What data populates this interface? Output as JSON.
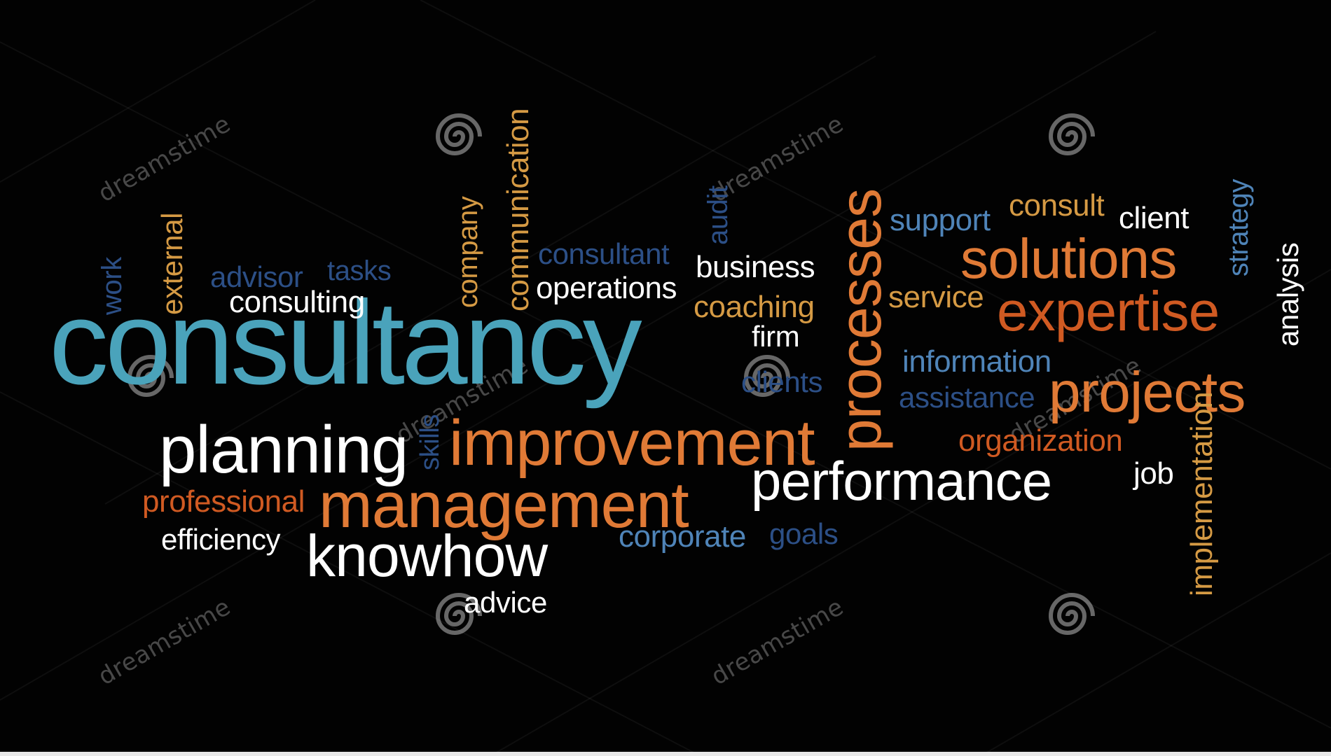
{
  "colors": {
    "background": "#020202",
    "teal": "#4aa3bb",
    "white": "#ffffff",
    "orange": "#e07a36",
    "dark_orange": "#d05a22",
    "tan": "#d59a44",
    "blue": "#4f84b8",
    "navy": "#2c4f86"
  },
  "words": {
    "consultancy": "consultancy",
    "planning": "planning",
    "improvement": "improvement",
    "management": "management",
    "knowhow": "knowhow",
    "performance": "performance",
    "processes": "processes",
    "solutions": "solutions",
    "expertise": "expertise",
    "projects": "projects",
    "professional": "professional",
    "efficiency": "efficiency",
    "advice": "advice",
    "corporate": "corporate",
    "goals": "goals",
    "consulting": "consulting",
    "advisor": "advisor",
    "tasks": "tasks",
    "work": "work",
    "external": "external",
    "company": "company",
    "communication": "communication",
    "consultant": "consultant",
    "audit": "audit",
    "operations": "operations",
    "business": "business",
    "coaching": "coaching",
    "firm": "firm",
    "clients": "clients",
    "skills": "skills",
    "support": "support",
    "consult": "consult",
    "client": "client",
    "strategy": "strategy",
    "analysis": "analysis",
    "service": "service",
    "information": "information",
    "assistance": "assistance",
    "organization": "organization",
    "job": "job",
    "implementation": "implementation"
  },
  "watermark": {
    "text": "dreamstime"
  }
}
